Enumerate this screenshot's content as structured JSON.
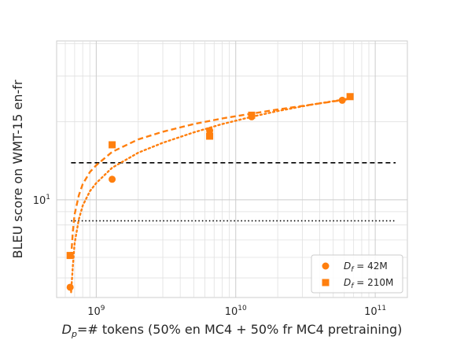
{
  "chart_data": {
    "type": "scatter",
    "title": "",
    "xlabel": "D_p=# tokens (50% en MC4 + 50% fr MC4 pretraining)",
    "ylabel": "BLEU score on WMT-15 en-fr",
    "x_scale": "log",
    "y_scale": "log",
    "xlim": [
      520000000,
      170000000000
    ],
    "ylim": [
      4.2,
      41
    ],
    "x_ticks": [
      {
        "value": 1000000000,
        "base": "10",
        "exp": "9"
      },
      {
        "value": 10000000000,
        "base": "10",
        "exp": "10"
      },
      {
        "value": 100000000000,
        "base": "10",
        "exp": "11"
      }
    ],
    "y_ticks": [
      {
        "value": 10,
        "base": "10",
        "exp": "1"
      }
    ],
    "grid": true,
    "color": "#ff7f0e",
    "series": [
      {
        "name": "D_f = 42M",
        "label_main": "D",
        "label_sub": "f",
        "label_rest": " = 42M",
        "marker": "circle",
        "fit_style": "dotted",
        "points": [
          {
            "x": 650000000,
            "y": 4.6
          },
          {
            "x": 1300000000,
            "y": 12.0
          },
          {
            "x": 6500000000,
            "y": 18.5
          },
          {
            "x": 13000000000,
            "y": 20.9
          },
          {
            "x": 58000000000,
            "y": 24.2
          }
        ],
        "fit": [
          [
            660000000,
            4.4
          ],
          [
            680000000,
            5.6
          ],
          [
            700000000,
            6.8
          ],
          [
            750000000,
            8.4
          ],
          [
            800000000,
            9.5
          ],
          [
            900000000,
            10.8
          ],
          [
            1000000000,
            11.6
          ],
          [
            1300000000,
            13.3
          ],
          [
            2000000000,
            15.2
          ],
          [
            3000000000,
            16.6
          ],
          [
            5000000000,
            18.2
          ],
          [
            8000000000,
            19.6
          ],
          [
            13000000000,
            20.9
          ],
          [
            20000000000,
            22.0
          ],
          [
            35000000000,
            23.3
          ],
          [
            60000000000,
            24.4
          ],
          [
            68000000000,
            24.7
          ]
        ]
      },
      {
        "name": "D_f = 210M",
        "label_main": "D",
        "label_sub": "f",
        "label_rest": " = 210M",
        "marker": "square",
        "fit_style": "dashed",
        "points": [
          {
            "x": 650000000,
            "y": 6.1
          },
          {
            "x": 1300000000,
            "y": 16.3
          },
          {
            "x": 6500000000,
            "y": 17.6
          },
          {
            "x": 13000000000,
            "y": 21.2
          },
          {
            "x": 66000000000,
            "y": 25.0
          }
        ],
        "fit": [
          [
            660000000,
            6.0
          ],
          [
            680000000,
            7.6
          ],
          [
            700000000,
            8.8
          ],
          [
            750000000,
            10.4
          ],
          [
            800000000,
            11.5
          ],
          [
            900000000,
            12.8
          ],
          [
            1000000000,
            13.6
          ],
          [
            1300000000,
            15.3
          ],
          [
            2000000000,
            17.1
          ],
          [
            3000000000,
            18.3
          ],
          [
            5000000000,
            19.6
          ],
          [
            8000000000,
            20.6
          ],
          [
            13000000000,
            21.5
          ],
          [
            20000000000,
            22.3
          ],
          [
            35000000000,
            23.3
          ],
          [
            66000000000,
            24.5
          ]
        ]
      }
    ],
    "reference_lines": [
      {
        "y": 13.9,
        "style": "dashed",
        "color": "#000000",
        "x_from": 660000000,
        "x_to": 140000000000
      },
      {
        "y": 8.3,
        "style": "dotted",
        "color": "#000000",
        "x_from": 660000000,
        "x_to": 140000000000
      }
    ],
    "legend_position": "lower-right"
  }
}
